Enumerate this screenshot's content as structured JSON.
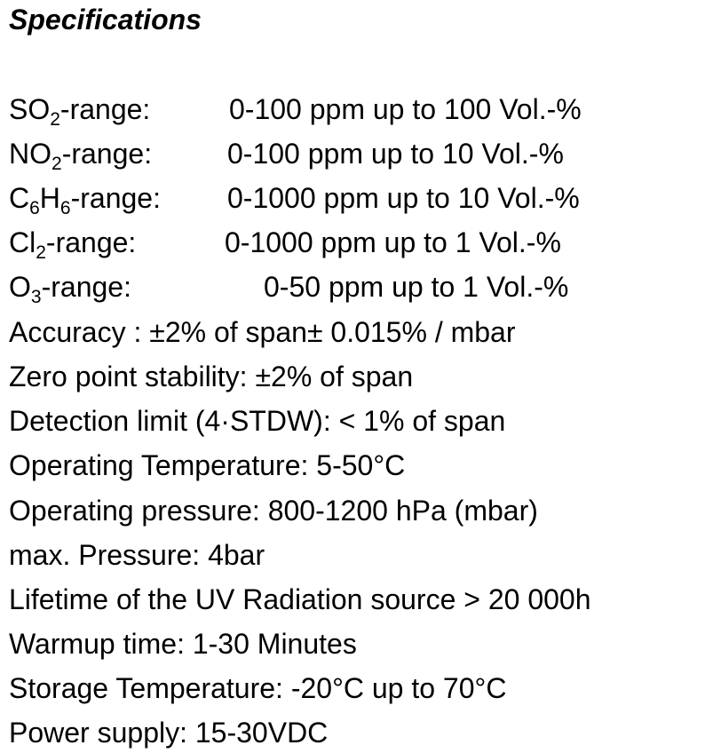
{
  "title": "Specifications",
  "ranges": [
    {
      "base": "SO",
      "sub1": "2",
      "mid": "",
      "sub2": "",
      "suffix": "-range:",
      "value": "0-100 ppm up to 100 Vol.-%"
    },
    {
      "base": "NO",
      "sub1": "2",
      "mid": "",
      "sub2": "",
      "suffix": "-range:",
      "value": "0-100 ppm up to 10 Vol.-%"
    },
    {
      "base": "C",
      "sub1": "6",
      "mid": "H",
      "sub2": "6",
      "suffix": "-range:",
      "value": "0-1000 ppm up to 10 Vol.-%"
    },
    {
      "base": "Cl",
      "sub1": "2",
      "mid": "",
      "sub2": "",
      "suffix": "-range:",
      "value": "0-1000 ppm up to 1 Vol.-%"
    },
    {
      "base": "O",
      "sub1": "3",
      "mid": "",
      "sub2": "",
      "suffix": "-range:",
      "value": "0-50 ppm up to 1 Vol.-%"
    }
  ],
  "specs": [
    "Accuracy : ±2% of span± 0.015% / mbar",
    "Zero point stability:  ±2% of span",
    "Detection limit (4·STDW):  < 1% of span",
    "Operating Temperature:  5-50°C",
    "Operating pressure:  800-1200 hPa (mbar)",
    "max. Pressure:  4bar",
    "Lifetime of the UV Radiation source > 20 000h",
    "Warmup time:  1-30 Minutes",
    "Storage Temperature: -20°C up to 70°C",
    "Power supply: 15-30VDC"
  ]
}
